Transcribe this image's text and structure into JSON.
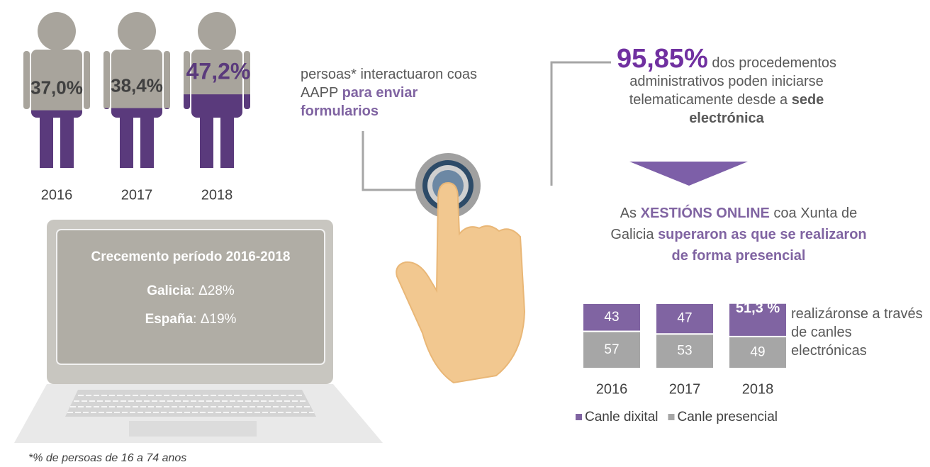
{
  "chart_data": [
    {
      "type": "pictogram",
      "categories": [
        "2016",
        "2017",
        "2018"
      ],
      "values": [
        37.0,
        38.4,
        47.2
      ],
      "value_labels": [
        "37,0%",
        "38,4%",
        "47,2%"
      ],
      "color": "#5a3a7c",
      "ylim": [
        0,
        100
      ]
    },
    {
      "type": "stacked_bar",
      "categories": [
        "2016",
        "2017",
        "2018"
      ],
      "series": [
        {
          "name": "Canle dixital",
          "color": "#8064a2",
          "values": [
            43,
            47,
            51.3
          ],
          "value_labels": [
            "43",
            "47",
            "51,3 %"
          ]
        },
        {
          "name": "Canle presencial",
          "color": "#a6a6a6",
          "values": [
            57,
            53,
            49
          ]
        }
      ],
      "ylim": [
        0,
        100
      ],
      "legend": "bottom"
    }
  ],
  "interaction": {
    "text": "persoas* interactuaron coas AAPP ",
    "highlight": "para enviar formularios"
  },
  "growth_box": {
    "title": "Crecemento período 2016-2018",
    "rows": [
      {
        "label": "Galicia",
        "value": ": Δ28%"
      },
      {
        "label": "España",
        "value": ": Δ19%"
      }
    ]
  },
  "procedures": {
    "value": "95,85%",
    "text": " dos procedementos administrativos poden iniciarse telematicamente desde a ",
    "highlight": "sede electrónica"
  },
  "online": {
    "parts": [
      "As ",
      "XESTIÓNS ONLINE",
      " coa Xunta de Galicia ",
      "superaron as que se realizaron de forma presencial"
    ]
  },
  "bar_note": "realizáronse a través de canles electrónicas",
  "footnote": "*% de persoas de 16 a 74 anos"
}
